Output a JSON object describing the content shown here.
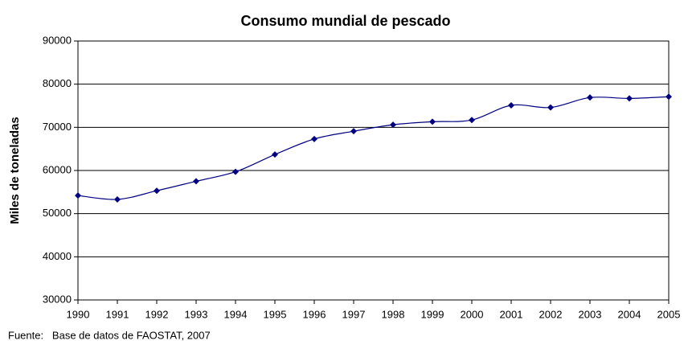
{
  "chart_data": {
    "type": "line",
    "title": "Consumo mundial de pescado",
    "y_label": "Miles de toneladas",
    "source": "Fuente:   Base de datos de FAOSTAT, 2007",
    "x": [
      1990,
      1991,
      1992,
      1993,
      1994,
      1995,
      1996,
      1997,
      1998,
      1999,
      2000,
      2001,
      2002,
      2003,
      2004,
      2005
    ],
    "series": [
      {
        "name": "Consumo",
        "color": "#000080",
        "values": [
          54200,
          53300,
          55300,
          57500,
          59700,
          63700,
          67300,
          69100,
          70600,
          71300,
          71700,
          75100,
          74600,
          76900,
          76700,
          77100
        ]
      }
    ],
    "xlim": [
      1990,
      2005
    ],
    "xticks": [
      1990,
      1991,
      1992,
      1993,
      1994,
      1995,
      1996,
      1997,
      1998,
      1999,
      2000,
      2001,
      2002,
      2003,
      2004,
      2005
    ],
    "ylim": [
      30000,
      90000
    ],
    "yticks": [
      30000,
      40000,
      50000,
      60000,
      70000,
      80000,
      90000
    ],
    "grid": true
  }
}
